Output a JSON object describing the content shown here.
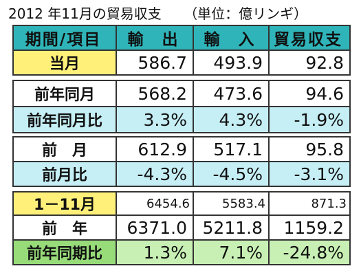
{
  "title": "2012 年11月の貿易収支",
  "unit": "（単位：億リンギ）",
  "chart_data": {
    "type": "table",
    "columns": [
      "期間/項目",
      "輸　出",
      "輸　入",
      "貿易収支"
    ],
    "rows": [
      [
        "当月",
        "586.7",
        "493.9",
        "92.8"
      ],
      [
        "前年同月",
        "568.2",
        "473.6",
        "94.6"
      ],
      [
        "前年同月比",
        "3.3%",
        "4.3%",
        "-1.9%"
      ],
      [
        "前　月",
        "612.9",
        "517.1",
        "95.8"
      ],
      [
        "前月比",
        "-4.3%",
        "-4.5%",
        "-3.1%"
      ],
      [
        "1－11月",
        "6454.6",
        "5583.4",
        "871.3"
      ],
      [
        "前　年",
        "6371.0",
        "5211.8",
        "1159.2"
      ],
      [
        "前年同期比",
        "1.3%",
        "7.1%",
        "-24.8%"
      ]
    ]
  },
  "colors": {
    "header": "#2fb5b9",
    "yellow": "#fff07a",
    "cyan": "#c6eef5",
    "green_light": "#c8f0b4",
    "green_label": "#98dc7a"
  }
}
